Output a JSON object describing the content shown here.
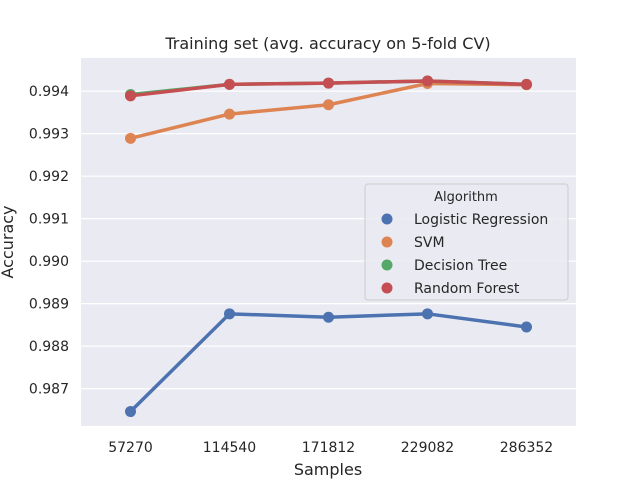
{
  "chart_data": {
    "type": "line",
    "title": "Training set (avg. accuracy on 5-fold CV)",
    "xlabel": "Samples",
    "ylabel": "Accuracy",
    "categories": [
      "57270",
      "114540",
      "171812",
      "229082",
      "286352"
    ],
    "ylim": [
      0.98612,
      0.99478
    ],
    "yticks": [
      "0.987",
      "0.988",
      "0.989",
      "0.990",
      "0.991",
      "0.992",
      "0.993",
      "0.994"
    ],
    "grid": true,
    "legend": {
      "title": "Algorithm",
      "placement": "center-right"
    },
    "series": [
      {
        "name": "Logistic Regression",
        "color": "#4c72b0",
        "values": [
          0.98646,
          0.98876,
          0.98868,
          0.98876,
          0.98845
        ]
      },
      {
        "name": "SVM",
        "color": "#dd8452",
        "values": [
          0.99289,
          0.99346,
          0.99368,
          0.99418,
          0.99415
        ]
      },
      {
        "name": "Decision Tree",
        "color": "#55a868",
        "values": [
          0.99392,
          0.99416,
          0.99419,
          0.99424,
          0.99416
        ]
      },
      {
        "name": "Random Forest",
        "color": "#c44e52",
        "values": [
          0.99389,
          0.99416,
          0.99419,
          0.99424,
          0.99416
        ]
      }
    ]
  }
}
